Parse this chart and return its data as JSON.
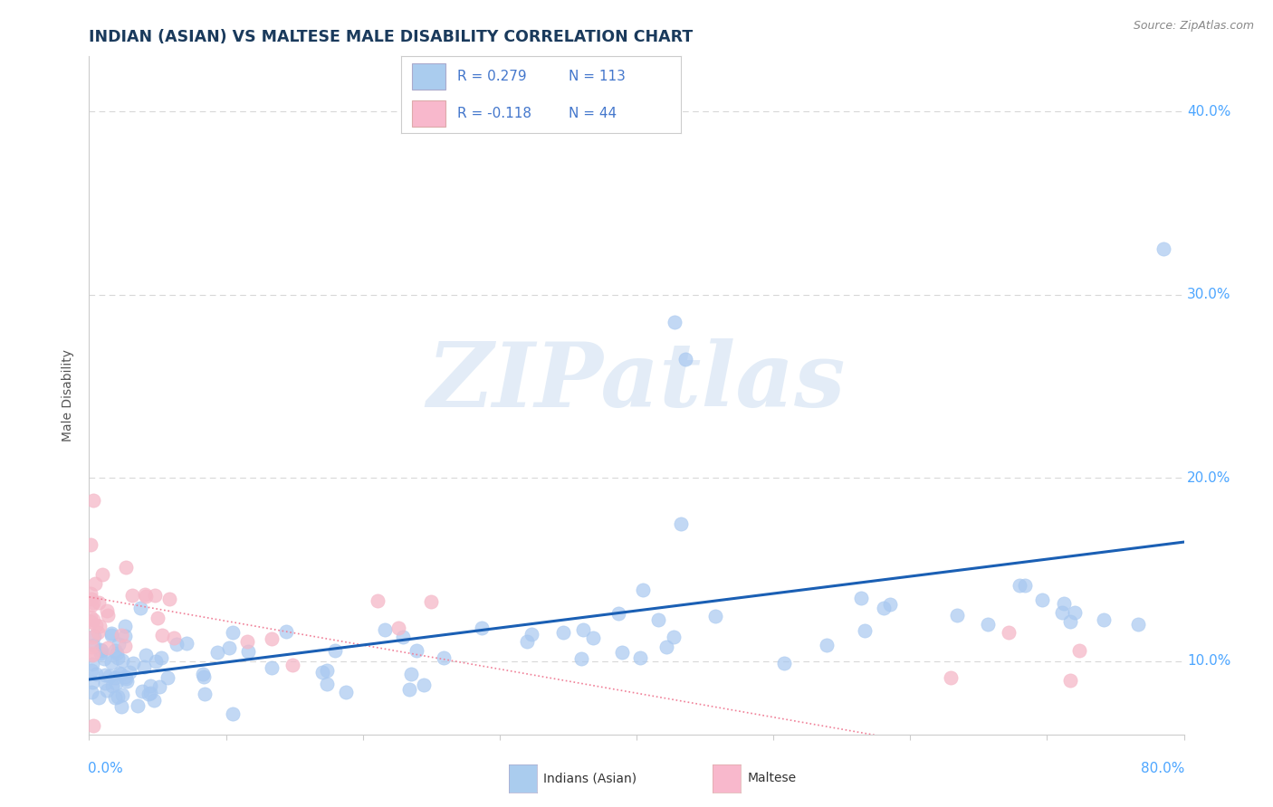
{
  "title": "INDIAN (ASIAN) VS MALTESE MALE DISABILITY CORRELATION CHART",
  "source": "Source: ZipAtlas.com",
  "ylabel": "Male Disability",
  "xlim": [
    0.0,
    80.0
  ],
  "ylim": [
    6.0,
    43.0
  ],
  "yticks": [
    10.0,
    20.0,
    30.0,
    40.0
  ],
  "title_color": "#1a3a5c",
  "title_fontsize": 13,
  "axis_tick_color": "#4da6ff",
  "background_color": "#ffffff",
  "watermark_text": "ZIPatlas",
  "legend_R1": "R = 0.279",
  "legend_N1": "N = 113",
  "legend_R2": "R = -0.118",
  "legend_N2": "N = 44",
  "blue_scatter_color": "#a8c8f0",
  "pink_scatter_color": "#f5b8c8",
  "blue_line_color": "#1a5fb4",
  "pink_line_color": "#f08098",
  "legend_blue_rect": "#aaccee",
  "legend_pink_rect": "#f8b8cc",
  "legend_text_color": "#4477cc",
  "legend_n_color": "#4477cc",
  "grid_color": "#d8d8d8",
  "spine_color": "#cccccc",
  "ylabel_color": "#555555",
  "source_color": "#888888",
  "blue_trend_start_y": 9.0,
  "blue_trend_end_y": 16.5,
  "pink_trend_start_y": 13.5,
  "pink_trend_end_y": 3.0,
  "bottom_legend_label1": "Indians (Asian)",
  "bottom_legend_label2": "Maltese"
}
